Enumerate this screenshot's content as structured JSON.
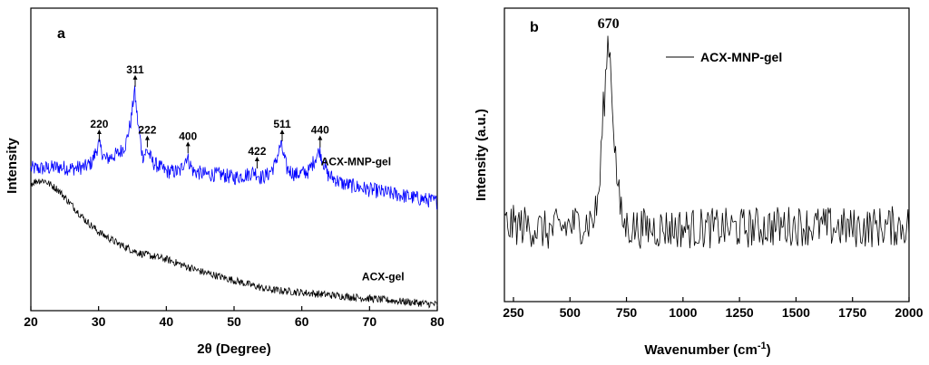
{
  "chart_data": [
    {
      "type": "line",
      "panel": "a",
      "xlabel": "2θ (Degree)",
      "ylabel": "Intensity",
      "xlim": [
        20,
        80
      ],
      "xticks": [
        20,
        30,
        40,
        50,
        60,
        70,
        80
      ],
      "ylim": [
        0,
        100
      ],
      "y_ticks_shown": false,
      "grid": false,
      "series": [
        {
          "name": "ACX-MNP-gel",
          "color": "#0000ff",
          "label_at": [
            68,
            48
          ],
          "x": [
            20,
            22,
            24,
            26,
            28,
            29,
            30,
            31,
            32,
            33,
            34,
            34.8,
            35.3,
            35.8,
            36.5,
            37.2,
            38,
            40,
            42,
            43,
            44,
            46,
            48,
            50,
            52,
            53,
            54,
            55,
            56,
            56.9,
            57.8,
            59,
            61,
            62.6,
            63.8,
            66,
            70,
            75,
            80
          ],
          "y": [
            47,
            47,
            47.5,
            47,
            47.5,
            49,
            55,
            50,
            51,
            52,
            55,
            63,
            73,
            62,
            51,
            53,
            49,
            46,
            46,
            51,
            46,
            45,
            45,
            44,
            45,
            46,
            44,
            45,
            48,
            55,
            47,
            45,
            46,
            53,
            45,
            42,
            40,
            38,
            36
          ]
        },
        {
          "name": "ACX-gel",
          "color": "#000000",
          "label_at": [
            72,
            10
          ],
          "x": [
            20,
            21,
            22,
            24,
            26,
            28,
            30,
            33,
            36,
            40,
            45,
            50,
            55,
            60,
            65,
            70,
            75,
            80
          ],
          "y": [
            42,
            43,
            43,
            40,
            35,
            30,
            26,
            22,
            19,
            17,
            13,
            10,
            7,
            6,
            5,
            4,
            3,
            2
          ]
        }
      ],
      "annotations": [
        {
          "text": "220",
          "x": 30.1,
          "y": 56
        },
        {
          "text": "311",
          "x": 35.4,
          "y": 74
        },
        {
          "text": "222",
          "x": 37.2,
          "y": 54
        },
        {
          "text": "400",
          "x": 43.2,
          "y": 52
        },
        {
          "text": "422",
          "x": 53.4,
          "y": 47
        },
        {
          "text": "511",
          "x": 57.1,
          "y": 56
        },
        {
          "text": "440",
          "x": 62.7,
          "y": 54
        }
      ]
    },
    {
      "type": "line",
      "panel": "b",
      "xlabel": "Wavenumber (cm",
      "xlabel_sup": "-1",
      "xlabel_close": ")",
      "ylabel": "Intensity (a.u.)",
      "xlim": [
        210,
        2000
      ],
      "xticks": [
        250,
        500,
        750,
        1000,
        1250,
        1500,
        1750,
        2000
      ],
      "ylim": [
        0,
        100
      ],
      "y_ticks_shown": false,
      "grid": false,
      "legend": "top-right",
      "annotations": [
        {
          "text": "670",
          "x": 670,
          "y": 92
        }
      ],
      "series": [
        {
          "name": "ACX-MNP-gel",
          "color": "#000000",
          "x": [
            210,
            300,
            400,
            500,
            580,
            610,
            630,
            645,
            660,
            670,
            680,
            695,
            710,
            725,
            740,
            800,
            1000,
            1250,
            1500,
            1750,
            2000
          ],
          "y": [
            26,
            26,
            24,
            26,
            27,
            29,
            38,
            62,
            78,
            92,
            80,
            58,
            40,
            30,
            26,
            25,
            25,
            25,
            26,
            25,
            26
          ]
        }
      ]
    }
  ]
}
